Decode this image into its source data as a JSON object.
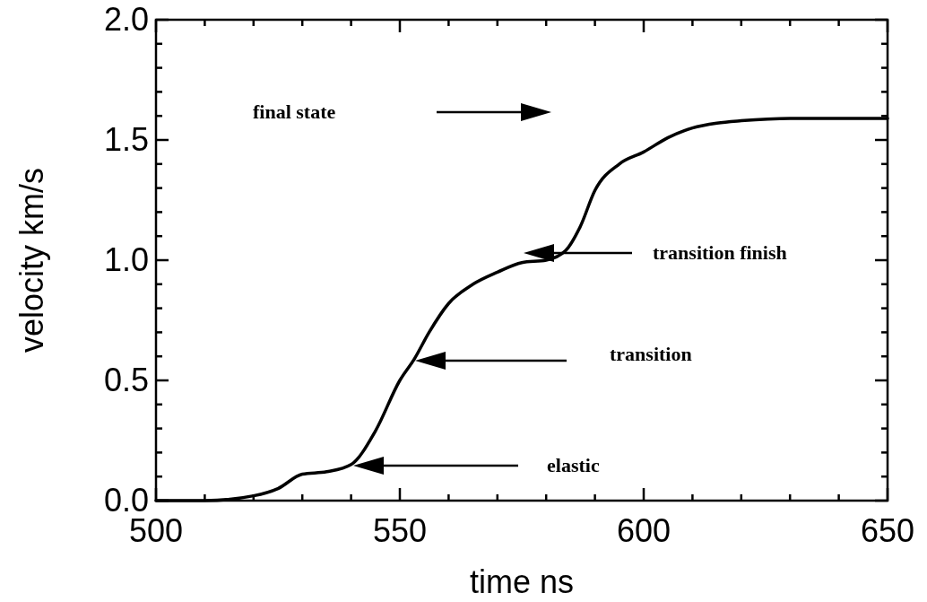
{
  "chart_data": {
    "type": "line",
    "xlabel": "time ns",
    "ylabel": "velocity km/s",
    "xlim": [
      500,
      650
    ],
    "ylim": [
      0,
      2
    ],
    "xticks": [
      500,
      {
        "value": 510,
        "label": null
      },
      {
        "value": 520,
        "label": null
      },
      {
        "value": 530,
        "label": null
      },
      {
        "value": 540,
        "label": null
      },
      550,
      {
        "value": 560,
        "label": null
      },
      {
        "value": 570,
        "label": null
      },
      {
        "value": 580,
        "label": null
      },
      {
        "value": 590,
        "label": null
      },
      600,
      {
        "value": 610,
        "label": null
      },
      {
        "value": 620,
        "label": null
      },
      {
        "value": 630,
        "label": null
      },
      {
        "value": 640,
        "label": null
      },
      650
    ],
    "yticks": [
      {
        "value": 0,
        "label": "0.0"
      },
      {
        "value": 0.1,
        "label": null
      },
      {
        "value": 0.2,
        "label": null
      },
      {
        "value": 0.3,
        "label": null
      },
      {
        "value": 0.4,
        "label": null
      },
      {
        "value": 0.5,
        "label": "0.5"
      },
      {
        "value": 0.6,
        "label": null
      },
      {
        "value": 0.7,
        "label": null
      },
      {
        "value": 0.8,
        "label": null
      },
      {
        "value": 0.9,
        "label": null
      },
      {
        "value": 1.0,
        "label": "1.0"
      },
      {
        "value": 1.1,
        "label": null
      },
      {
        "value": 1.2,
        "label": null
      },
      {
        "value": 1.3,
        "label": null
      },
      {
        "value": 1.4,
        "label": null
      },
      {
        "value": 1.5,
        "label": "1.5"
      },
      {
        "value": 1.6,
        "label": null
      },
      {
        "value": 1.7,
        "label": null
      },
      {
        "value": 1.8,
        "label": null
      },
      {
        "value": 1.9,
        "label": null
      },
      {
        "value": 2.0,
        "label": "2.0"
      }
    ],
    "grid": false,
    "marker": "none",
    "line_style": "solid",
    "series": [
      {
        "color": "#000000",
        "x": [
          500,
          510,
          520,
          525,
          530,
          535,
          540,
          545,
          550,
          553,
          556,
          560,
          565,
          570,
          575,
          580,
          584,
          587,
          590,
          595,
          600,
          605,
          610,
          615,
          620,
          630,
          640,
          650
        ],
        "values": [
          0.0,
          0.0,
          0.02,
          0.05,
          0.11,
          0.12,
          0.15,
          0.29,
          0.5,
          0.59,
          0.7,
          0.82,
          0.9,
          0.95,
          0.99,
          1.0,
          1.04,
          1.14,
          1.29,
          1.4,
          1.45,
          1.51,
          1.55,
          1.57,
          1.58,
          1.59,
          1.59,
          1.59
        ]
      }
    ],
    "annotations": [
      "final state",
      "transition finish",
      "transition",
      "elastic"
    ]
  }
}
